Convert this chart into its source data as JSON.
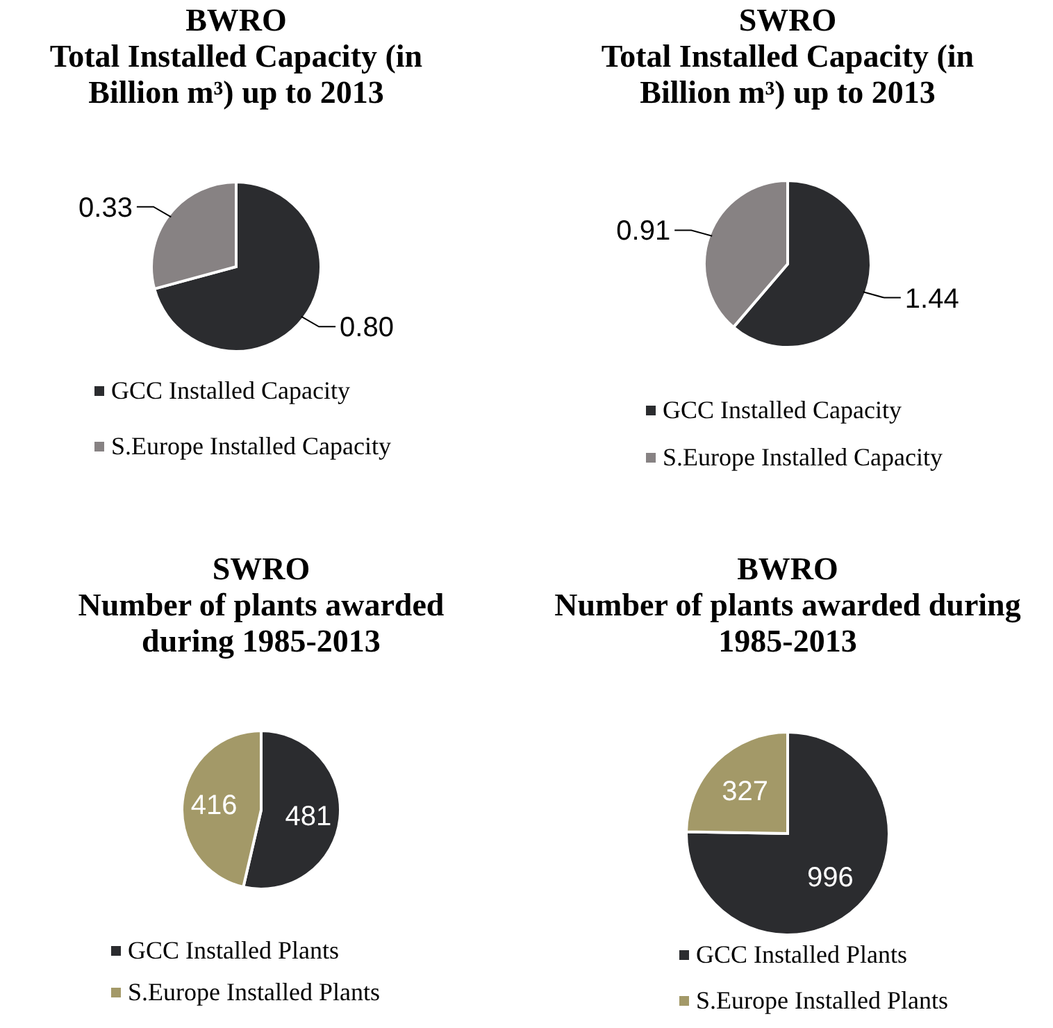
{
  "chart_data": [
    {
      "type": "pie",
      "title": "BWRO\nTotal Installed Capacity (in\nBillion m³) up to 2013",
      "categories": [
        "GCC Installed Capacity",
        "S.Europe Installed Capacity"
      ],
      "values": [
        0.8,
        0.33
      ],
      "value_labels": [
        "0.80",
        "0.33"
      ],
      "colors": [
        "#2b2c2f",
        "#878283"
      ],
      "legend": "bottom"
    },
    {
      "type": "pie",
      "title": "SWRO\nTotal Installed Capacity (in\nBillion m³) up to 2013",
      "categories": [
        "GCC Installed Capacity",
        "S.Europe Installed Capacity"
      ],
      "values": [
        1.44,
        0.91
      ],
      "value_labels": [
        "1.44",
        "0.91"
      ],
      "colors": [
        "#2b2c2f",
        "#878283"
      ],
      "legend": "bottom"
    },
    {
      "type": "pie",
      "title": "SWRO\nNumber of plants awarded\nduring 1985-2013",
      "categories": [
        "GCC Installed Plants",
        "S.Europe Installed Plants"
      ],
      "values": [
        481,
        416
      ],
      "colors": [
        "#2b2c2f",
        "#a39968"
      ],
      "data_labels": true,
      "legend": "bottom"
    },
    {
      "type": "pie",
      "title": "BWRO\nNumber of plants awarded during\n1985-2013",
      "categories": [
        "GCC Installed Plants",
        "S.Europe Installed Plants"
      ],
      "values": [
        996,
        327
      ],
      "colors": [
        "#2b2c2f",
        "#a39968"
      ],
      "data_labels": true,
      "legend": "bottom"
    }
  ]
}
